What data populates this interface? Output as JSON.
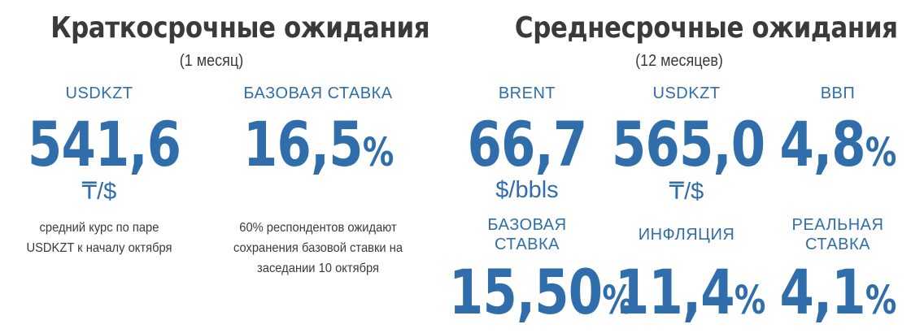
{
  "short": {
    "title": "Краткосрочные ожидания",
    "subtitle": "(1 месяц)",
    "usdkzt": {
      "label": "USDKZT",
      "value": "541,6",
      "unit": "₸/$",
      "note_line1": "средний курс по паре",
      "note_line2": "USDKZT к началу октября"
    },
    "rate": {
      "label": "БАЗОВАЯ СТАВКА",
      "value": "16,5",
      "pct": "%",
      "note_line1": "60% респондентов ожидают",
      "note_line2": "сохранения базовой ставки на",
      "note_line3": "заседании 10 октября"
    }
  },
  "medium": {
    "title": "Среднесрочные ожидания",
    "subtitle": "(12 месяцев)",
    "brent": {
      "label": "BRENT",
      "value": "66,7",
      "unit": "$/bbls"
    },
    "usdkzt": {
      "label": "USDKZT",
      "value": "565,0",
      "unit": "₸/$"
    },
    "gdp": {
      "label": "ВВП",
      "value": "4,8",
      "pct": "%"
    },
    "rate": {
      "label_line1": "БАЗОВАЯ",
      "label_line2": "СТАВКА",
      "value": "15,50",
      "pct": "%"
    },
    "inflation": {
      "label": "ИНФЛЯЦИЯ",
      "value": "11,4",
      "pct": "%"
    },
    "real_rate": {
      "label_line1": "РЕАЛЬНАЯ",
      "label_line2": "СТАВКА",
      "value": "4,1",
      "pct": "%"
    }
  },
  "colors": {
    "accent": "#2f6eab",
    "text": "#3a3a3a",
    "background": "#ffffff"
  }
}
